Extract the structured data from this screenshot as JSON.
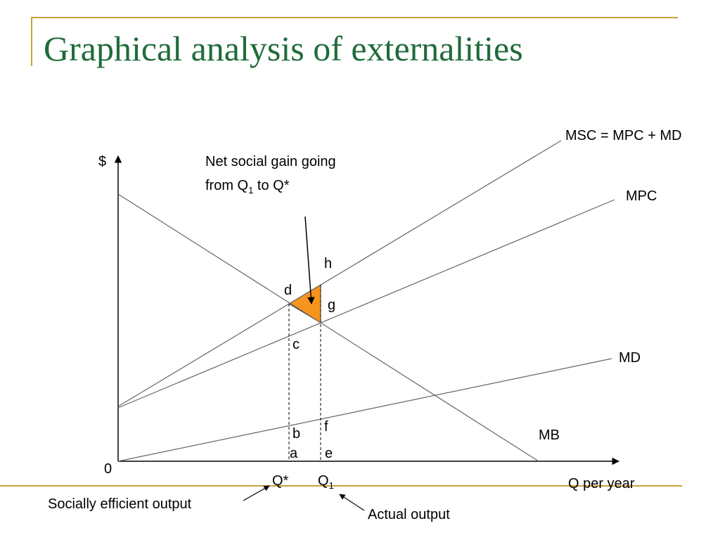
{
  "slide": {
    "title": "Graphical analysis of externalities",
    "accent_color": "#c8a23c",
    "title_color": "#1f6b3a"
  },
  "diagram": {
    "y_axis_label": "$",
    "x_axis_label": "Q per year",
    "origin_label": "0",
    "curves": {
      "msc": "MSC = MPC + MD",
      "mpc": "MPC",
      "md": "MD",
      "mb": "MB"
    },
    "points": {
      "h": "h",
      "d": "d",
      "g": "g",
      "c": "c",
      "b": "b",
      "f": "f",
      "a": "a",
      "e": "e"
    },
    "q_star": "Q*",
    "q1_main": "Q",
    "q1_sub": "1",
    "shaded_fill": "#f7941d",
    "annotation": {
      "line1": "Net social gain going",
      "line2_pre": "from Q",
      "line2_sub": "1",
      "line2_post": " to Q*"
    },
    "callouts": {
      "efficient": "Socially efficient output",
      "actual": "Actual output"
    }
  }
}
